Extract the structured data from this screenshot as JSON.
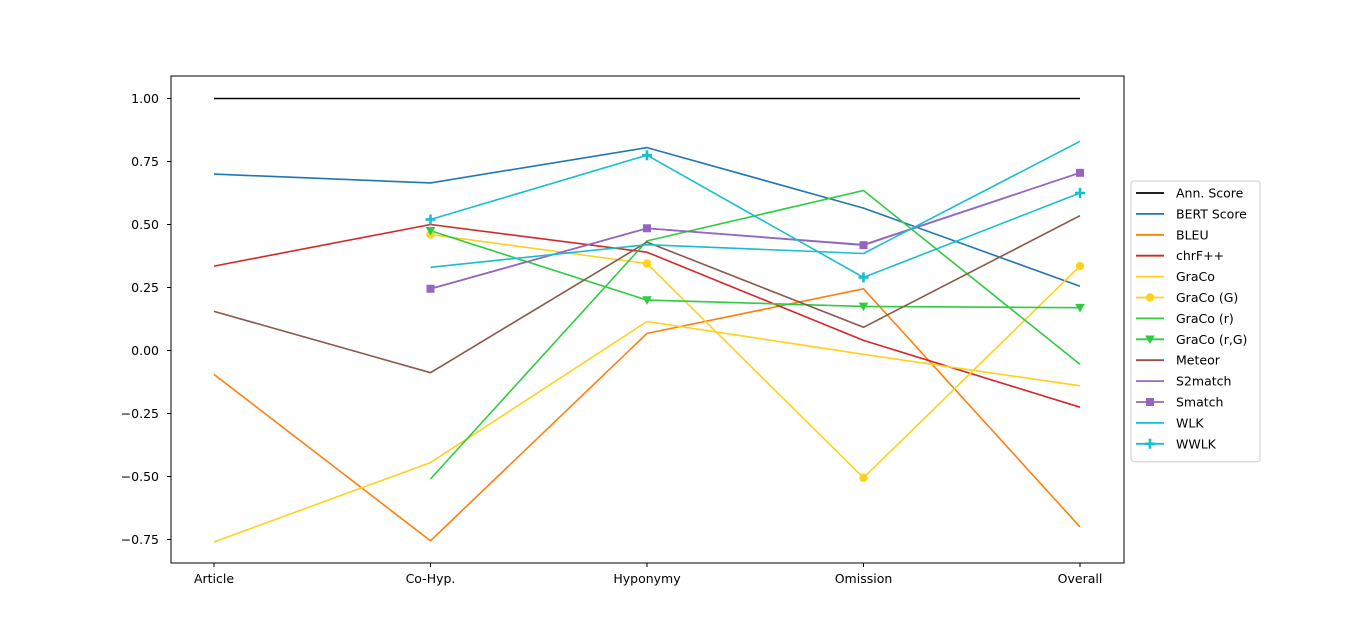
{
  "chart_data": {
    "type": "line",
    "categories": [
      "Article",
      "Co-Hyp.",
      "Hyponymy",
      "Omission",
      "Overall"
    ],
    "ylim": [
      -0.85,
      1.08
    ],
    "yticks": [
      -0.75,
      -0.5,
      -0.25,
      0.0,
      0.25,
      0.5,
      0.75,
      1.0
    ],
    "ytick_labels": [
      "−0.75",
      "−0.50",
      "−0.25",
      "0.00",
      "0.25",
      "0.50",
      "0.75",
      "1.00"
    ],
    "grid": false,
    "legend_position": "right",
    "series": [
      {
        "name": "Ann. Score",
        "color": "#000000",
        "marker": "none",
        "values": [
          1.0,
          1.0,
          1.0,
          1.0,
          1.0
        ]
      },
      {
        "name": "BERT Score",
        "color": "#1f77b4",
        "marker": "none",
        "values": [
          0.7,
          0.665,
          0.805,
          0.565,
          0.255
        ]
      },
      {
        "name": "BLEU",
        "color": "#ff7f0e",
        "marker": "none",
        "values": [
          -0.095,
          -0.755,
          0.068,
          0.245,
          -0.7
        ]
      },
      {
        "name": "chrF++",
        "color": "#d62728",
        "marker": "none",
        "values": [
          0.335,
          0.5,
          0.39,
          0.04,
          -0.225
        ]
      },
      {
        "name": "GraCo",
        "color": "#ffd11a",
        "marker": "none",
        "values": [
          -0.76,
          -0.445,
          0.115,
          -0.015,
          -0.14
        ]
      },
      {
        "name": "GraCo (G)",
        "color": "#ffd11a",
        "marker": "circle",
        "values": [
          null,
          0.46,
          0.345,
          -0.505,
          0.335
        ]
      },
      {
        "name": "GraCo (r)",
        "color": "#2ecc40",
        "marker": "none",
        "values": [
          null,
          -0.51,
          0.435,
          0.635,
          -0.055
        ]
      },
      {
        "name": "GraCo (r,G)",
        "color": "#2ecc40",
        "marker": "triangle-down",
        "values": [
          null,
          0.475,
          0.2,
          0.175,
          0.17
        ]
      },
      {
        "name": "Meteor",
        "color": "#8c564b",
        "marker": "none",
        "values": [
          0.155,
          -0.088,
          0.43,
          0.092,
          0.535
        ]
      },
      {
        "name": "S2match",
        "color": "#9467bd",
        "marker": "none",
        "values": [
          null,
          0.245,
          0.485,
          0.42,
          0.705
        ]
      },
      {
        "name": "Smatch",
        "color": "#9467bd",
        "marker": "square",
        "values": [
          null,
          0.245,
          0.485,
          0.418,
          0.705
        ]
      },
      {
        "name": "WLK",
        "color": "#17becf",
        "marker": "none",
        "values": [
          null,
          0.33,
          0.42,
          0.385,
          0.83
        ]
      },
      {
        "name": "WWLK",
        "color": "#17becf",
        "marker": "plus",
        "values": [
          null,
          0.52,
          0.775,
          0.29,
          0.625
        ]
      }
    ]
  }
}
